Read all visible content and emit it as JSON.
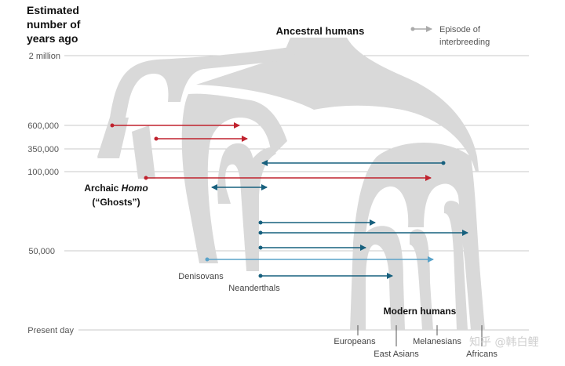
{
  "title_lines": [
    "Estimated",
    "number of",
    "years ago"
  ],
  "header": {
    "ancestral": "Ancestral humans"
  },
  "legend": {
    "line1": "Episode of",
    "line2": "interbreeding"
  },
  "time_axis": {
    "ticks": [
      "2 million",
      "600,000",
      "350,000",
      "100,000",
      "50,000",
      "Present day"
    ]
  },
  "archaic": {
    "line1_prefix": "Archaic ",
    "line1_italic": "Homo",
    "line2": "(“Ghosts”)"
  },
  "populations": {
    "denisovans": "Denisovans",
    "neanderthals": "Neanderthals",
    "modern": "Modern humans",
    "europeans": "Europeans",
    "east_asians": "East Asians",
    "melanesians": "Melanesians",
    "africans": "Africans"
  },
  "colors": {
    "red": "#c0222e",
    "dark_blue": "#17607e",
    "light_blue": "#5aa3c9",
    "branch": "#d9d9d9",
    "line": "#c8c8c8"
  },
  "watermark": "知乎 @韩白鲤"
}
